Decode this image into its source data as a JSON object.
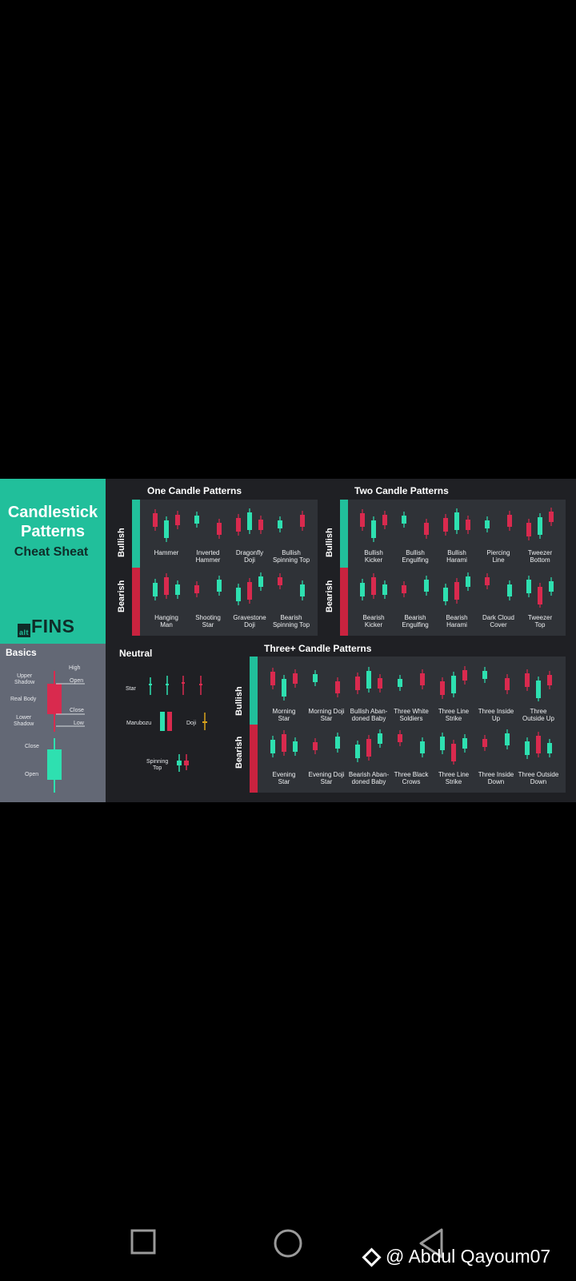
{
  "cheatsheet": {
    "title_line1": "Candlestick",
    "title_line2": "Patterns",
    "subtitle": "Cheat Sheat",
    "logo_small": "alt",
    "logo_main": "FINS",
    "colors": {
      "bull": "#2ee0b0",
      "bear": "#d92a4e",
      "teal": "#21bf9b",
      "doji": "#d9a21b"
    }
  },
  "basics": {
    "title": "Basics",
    "labels": [
      "High",
      "Upper\nShadow",
      "Open",
      "Real Body",
      "Close",
      "Lower\nShadow",
      "Low",
      "Close",
      "Open"
    ]
  },
  "one_candle": {
    "title": "One Candle Patterns",
    "bullish_label": "Bullish",
    "bearish_label": "Bearish",
    "bullish": [
      "Hammer",
      "Inverted\nHammer",
      "Dragonfly\nDoji",
      "Bullish\nSpinning Top"
    ],
    "bearish": [
      "Hanging\nMan",
      "Shooting\nStar",
      "Gravestone\nDoji",
      "Bearish\nSpinning Top"
    ]
  },
  "two_candle": {
    "title": "Two Candle Patterns",
    "bullish_label": "Bullish",
    "bearish_label": "Bearish",
    "bullish": [
      "Bullish\nKicker",
      "Bullish\nEngulfing",
      "Bullish\nHarami",
      "Piercing\nLine",
      "Tweezer\nBottom"
    ],
    "bearish": [
      "Bearish\nKicker",
      "Bearish\nEngulfing",
      "Bearish\nHarami",
      "Dark Cloud\nCover",
      "Tweezer\nTop"
    ]
  },
  "neutral": {
    "title": "Neutral",
    "items": [
      "Star",
      "Marubozu",
      "Doji",
      "Spinning\nTop"
    ]
  },
  "three_candle": {
    "title": "Three+ Candle Patterns",
    "bullish_label": "Bullish",
    "bearish_label": "Bearish",
    "bullish": [
      "Morning\nStar",
      "Morning Doji\nStar",
      "Bullish Aban-\ndoned Baby",
      "Three White\nSoldiers",
      "Three Line\nStrike",
      "Three Inside\nUp",
      "Three\nOutside Up"
    ],
    "bearish": [
      "Evening\nStar",
      "Evening Doji\nStar",
      "Bearish Aban-\ndoned Baby",
      "Three Black\nCrows",
      "Three Line\nStrike",
      "Three Inside\nDown",
      "Three Outside\nDown"
    ]
  },
  "watermark": {
    "text": "@ Abdul Qayoum07",
    "icon": "binance-diamond-icon"
  },
  "navbar": {
    "icons": [
      "recents-square-icon",
      "home-circle-icon",
      "back-triangle-icon"
    ]
  }
}
